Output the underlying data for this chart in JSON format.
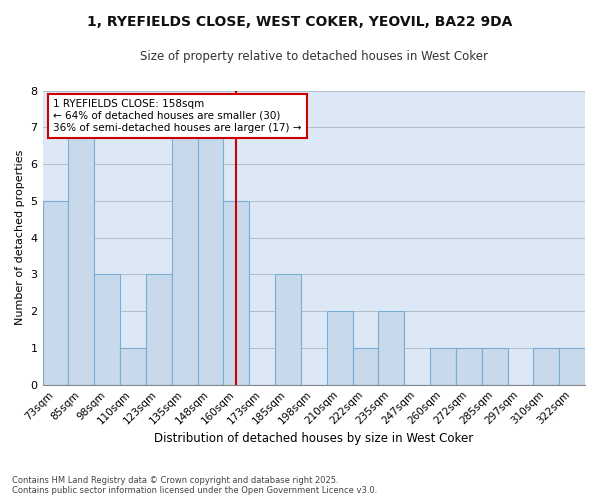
{
  "title1": "1, RYEFIELDS CLOSE, WEST COKER, YEOVIL, BA22 9DA",
  "title2": "Size of property relative to detached houses in West Coker",
  "xlabel": "Distribution of detached houses by size in West Coker",
  "ylabel": "Number of detached properties",
  "footer1": "Contains HM Land Registry data © Crown copyright and database right 2025.",
  "footer2": "Contains public sector information licensed under the Open Government Licence v3.0.",
  "bar_labels": [
    "73sqm",
    "85sqm",
    "98sqm",
    "110sqm",
    "123sqm",
    "135sqm",
    "148sqm",
    "160sqm",
    "173sqm",
    "185sqm",
    "198sqm",
    "210sqm",
    "222sqm",
    "235sqm",
    "247sqm",
    "260sqm",
    "272sqm",
    "285sqm",
    "297sqm",
    "310sqm",
    "322sqm"
  ],
  "bar_values": [
    5,
    7,
    3,
    1,
    3,
    7,
    7,
    5,
    0,
    3,
    0,
    2,
    1,
    2,
    0,
    1,
    1,
    1,
    0,
    1,
    1
  ],
  "bar_color": "#c9d9ec",
  "bar_edgecolor": "#7aadd4",
  "grid_color": "#b0bec8",
  "bg_color": "#dce8f5",
  "marker_index": 7,
  "marker_color": "#cc0000",
  "annotation_line1": "1 RYEFIELDS CLOSE: 158sqm",
  "annotation_line2": "← 64% of detached houses are smaller (30)",
  "annotation_line3": "36% of semi-detached houses are larger (17) →",
  "ylim": [
    0,
    8
  ],
  "yticks": [
    0,
    1,
    2,
    3,
    4,
    5,
    6,
    7,
    8
  ]
}
